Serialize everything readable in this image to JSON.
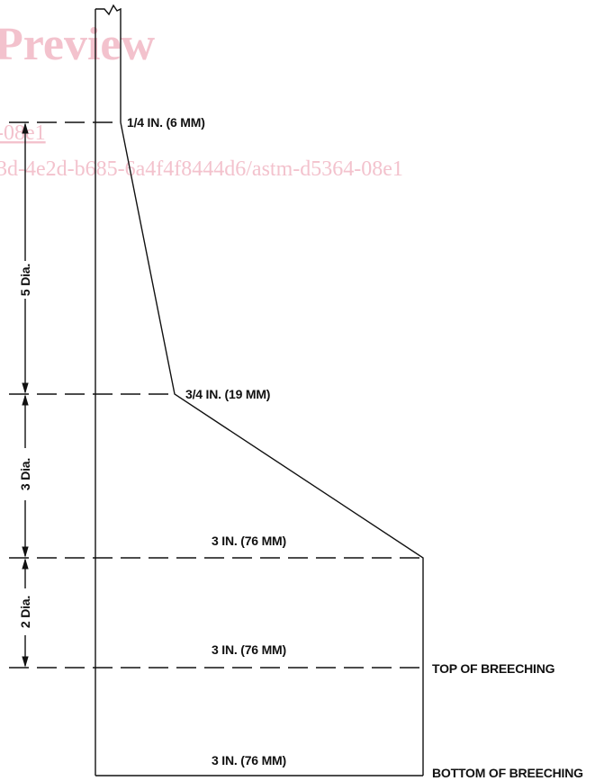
{
  "watermark": {
    "preview": "Preview",
    "link_fragment": "-08e1",
    "url_fragment": "3d-4e2d-b685-6a4f4f8444d6/astm-d5364-08e1",
    "color": "#f3c2cd"
  },
  "diagram": {
    "line_color": "#111111",
    "thickness_labels": {
      "top": "1/4 IN. (6 MM)",
      "mid": "3/4 IN. (19 MM)",
      "flare": "3 IN. (76 MM)",
      "breech_top": "3 IN. (76 MM)",
      "breech_bottom": "3 IN. (76 MM)"
    },
    "dimension_labels": {
      "upper": "5 Dia.",
      "middle": "3 Dia.",
      "lower": "2 Dia."
    },
    "breeching_labels": {
      "top": "TOP OF BREECHING",
      "bottom": "BOTTOM OF BREECHING"
    }
  }
}
